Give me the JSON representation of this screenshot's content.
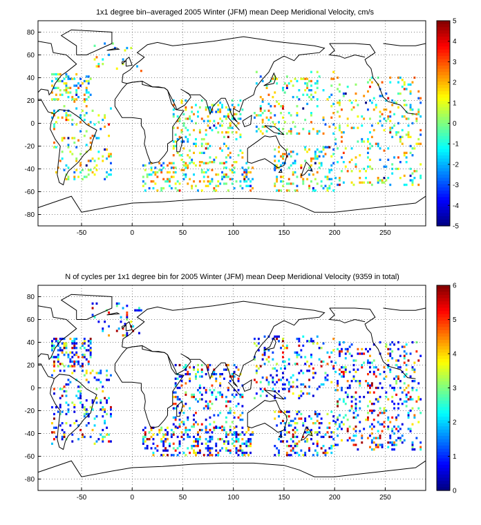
{
  "chart_data": [
    {
      "type": "heatmap",
      "title": "1x1 degree bin–averaged 2005 Winter (JFM) mean Deep Meridional Velocity, cm/s",
      "xlabel": "",
      "ylabel": "",
      "xlim": [
        -93,
        290
      ],
      "ylim": [
        -90,
        90
      ],
      "xticks": [
        -50,
        0,
        50,
        100,
        150,
        200,
        250
      ],
      "yticks": [
        80,
        60,
        40,
        20,
        0,
        -20,
        -40,
        -60,
        -80
      ],
      "grid": true,
      "colorbar": {
        "colormap": "jet",
        "min": -5,
        "max": 5,
        "ticks": [
          5,
          4,
          3,
          2,
          1,
          0,
          -1,
          -2,
          -3,
          -4,
          -5
        ],
        "placement": "right"
      },
      "regions": [
        {
          "x": [
            -80,
            -40
          ],
          "y": [
            18,
            44
          ],
          "density": 0.35
        },
        {
          "x": [
            -80,
            -20
          ],
          "y": [
            -50,
            15
          ],
          "density": 0.12
        },
        {
          "x": [
            -40,
            10
          ],
          "y": [
            45,
            70
          ],
          "density": 0.06
        },
        {
          "x": [
            10,
            120
          ],
          "y": [
            -60,
            -35
          ],
          "density": 0.25
        },
        {
          "x": [
            40,
            110
          ],
          "y": [
            -35,
            20
          ],
          "density": 0.18
        },
        {
          "x": [
            120,
            200
          ],
          "y": [
            -10,
            45
          ],
          "density": 0.12
        },
        {
          "x": [
            140,
            200
          ],
          "y": [
            -60,
            -20
          ],
          "density": 0.2
        },
        {
          "x": [
            200,
            285
          ],
          "y": [
            -55,
            40
          ],
          "density": 0.14
        }
      ]
    },
    {
      "type": "heatmap",
      "title": "N of cycles per 1x1 degree bin for 2005 Winter (JFM) mean Deep Meridional Velocity (9359 in total)",
      "xlabel": "",
      "ylabel": "",
      "xlim": [
        -93,
        290
      ],
      "ylim": [
        -90,
        90
      ],
      "xticks": [
        -50,
        0,
        50,
        100,
        150,
        200,
        250
      ],
      "yticks": [
        80,
        60,
        40,
        20,
        0,
        -20,
        -40,
        -60,
        -80
      ],
      "grid": true,
      "colorbar": {
        "colormap": "jet",
        "min": 0,
        "max": 6,
        "ticks": [
          6,
          5,
          4,
          3,
          2,
          1,
          0
        ],
        "placement": "right"
      },
      "regions": [
        {
          "x": [
            -80,
            -40
          ],
          "y": [
            18,
            44
          ],
          "density": 0.4
        },
        {
          "x": [
            -80,
            -20
          ],
          "y": [
            -50,
            15
          ],
          "density": 0.14
        },
        {
          "x": [
            -40,
            10
          ],
          "y": [
            45,
            75
          ],
          "density": 0.08
        },
        {
          "x": [
            10,
            120
          ],
          "y": [
            -60,
            -35
          ],
          "density": 0.35
        },
        {
          "x": [
            40,
            110
          ],
          "y": [
            -35,
            20
          ],
          "density": 0.2
        },
        {
          "x": [
            120,
            200
          ],
          "y": [
            -10,
            45
          ],
          "density": 0.16
        },
        {
          "x": [
            140,
            200
          ],
          "y": [
            -60,
            -20
          ],
          "density": 0.25
        },
        {
          "x": [
            200,
            285
          ],
          "y": [
            -55,
            40
          ],
          "density": 0.18
        }
      ]
    }
  ]
}
